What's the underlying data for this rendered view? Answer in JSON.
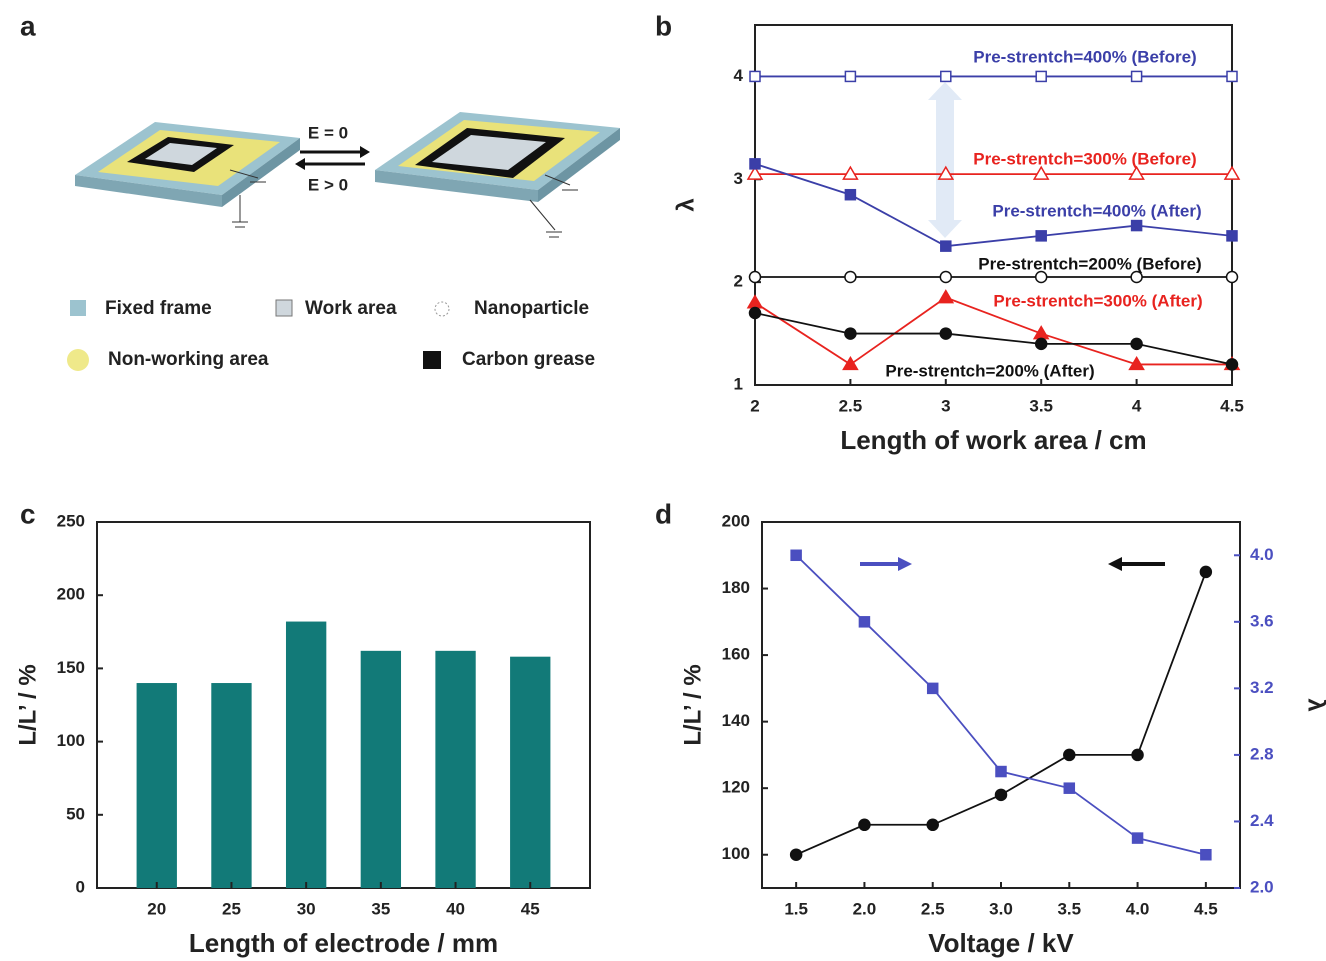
{
  "diagram": {
    "label": "a",
    "arrow_top": "E = 0",
    "arrow_bottom": "E > 0",
    "legend": [
      "Fixed frame",
      "Work area",
      "Nanoparticle",
      "Non-working area",
      "Carbon grease"
    ]
  },
  "chart_data": [
    {
      "type": "line",
      "label": "b",
      "xlabel": "Length of work area / cm",
      "ylabel": "λ",
      "x": [
        2,
        2.5,
        3,
        3.5,
        4,
        4.5
      ],
      "xlim": [
        2,
        4.5
      ],
      "xticks": [
        2,
        2.5,
        3,
        3.5,
        4,
        4.5
      ],
      "ylim": [
        1,
        4.5
      ],
      "yticks": [
        1,
        2,
        3,
        4
      ],
      "series": [
        {
          "name": "Pre-strentch=400% (Before)",
          "color": "#3b3fa8",
          "marker": "square",
          "filled": false,
          "values": [
            4,
            4,
            4,
            4,
            4,
            4
          ]
        },
        {
          "name": "Pre-strentch=300% (Before)",
          "color": "#e8231f",
          "marker": "triangle",
          "filled": false,
          "values": [
            3.05,
            3.05,
            3.05,
            3.05,
            3.05,
            3.05
          ]
        },
        {
          "name": "Pre-strentch=400% (After)",
          "color": "#3b3fa8",
          "marker": "square",
          "filled": true,
          "values": [
            3.15,
            2.85,
            2.35,
            2.45,
            2.55,
            2.45
          ]
        },
        {
          "name": "Pre-strentch=200% (Before)",
          "color": "#111111",
          "marker": "circle",
          "filled": false,
          "values": [
            2.05,
            2.05,
            2.05,
            2.05,
            2.05,
            2.05
          ]
        },
        {
          "name": "Pre-strentch=300% (After)",
          "color": "#e8231f",
          "marker": "triangle",
          "filled": true,
          "values": [
            1.8,
            1.2,
            1.85,
            1.5,
            1.2,
            1.2
          ]
        },
        {
          "name": "Pre-strentch=200% (After)",
          "color": "#111111",
          "marker": "circle",
          "filled": true,
          "values": [
            1.7,
            1.5,
            1.5,
            1.4,
            1.4,
            1.2
          ]
        }
      ]
    },
    {
      "type": "bar",
      "label": "c",
      "xlabel": "Length of electrode / mm",
      "ylabel": "L/L’ / %",
      "categories": [
        "20",
        "25",
        "30",
        "35",
        "40",
        "45"
      ],
      "values": [
        140,
        140,
        182,
        162,
        162,
        158
      ],
      "color": "#127a78",
      "ylim": [
        0,
        250
      ],
      "yticks": [
        0,
        50,
        100,
        150,
        200,
        250
      ]
    },
    {
      "type": "line",
      "label": "d",
      "xlabel": "Voltage / kV",
      "ylabel": "L/L’ / %",
      "y2label": "λ",
      "x": [
        1.5,
        2,
        2.5,
        3,
        3.5,
        4,
        4.5
      ],
      "xlim": [
        1.25,
        4.75
      ],
      "xticks": [
        1.5,
        {
          "value": 2,
          "label": "2.0"
        },
        2.5,
        {
          "value": 3,
          "label": "3.0"
        },
        3.5,
        {
          "value": 4,
          "label": "4.0"
        },
        4.5
      ],
      "ylim": [
        90,
        200
      ],
      "yticks": [
        100,
        120,
        140,
        160,
        180,
        200
      ],
      "y2lim": [
        2,
        4.2
      ],
      "y2ticks": [
        {
          "value": 2,
          "label": "2.0"
        },
        2.4,
        2.8,
        3.2,
        3.6,
        {
          "value": 4,
          "label": "4.0"
        }
      ],
      "series": [
        {
          "color": "#111111",
          "marker": "circle",
          "filled": true,
          "values": [
            100,
            109,
            109,
            118,
            130,
            130,
            185
          ]
        },
        {
          "color": "#4b4fc0",
          "marker": "square",
          "filled": true,
          "axis": "y2",
          "values": [
            4.0,
            3.6,
            3.2,
            2.7,
            2.6,
            2.3,
            2.2
          ]
        }
      ]
    }
  ]
}
